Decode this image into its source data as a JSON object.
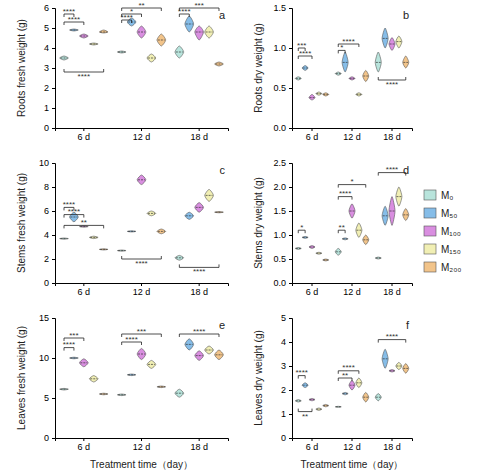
{
  "chart_data": [
    {
      "type": "violin",
      "title": "a",
      "y_label": "Roots fresh weight (g)",
      "categories": [
        "6 d",
        "12 d",
        "18 d"
      ],
      "ylim": [
        0,
        6
      ],
      "yticks": [
        0,
        1,
        2,
        3,
        4,
        5,
        6
      ],
      "legend": "right",
      "series": [
        {
          "name": "M₀",
          "color": "#b8e4dc",
          "values": [
            3.5,
            3.8,
            3.8
          ],
          "min": [
            3.4,
            3.75,
            3.5
          ],
          "max": [
            3.6,
            3.85,
            4.1
          ]
        },
        {
          "name": "M₅₀",
          "color": "#86bde8",
          "values": [
            4.9,
            5.3,
            5.2
          ],
          "min": [
            4.85,
            5.1,
            4.8
          ],
          "max": [
            4.95,
            5.5,
            5.6
          ]
        },
        {
          "name": "M₁₀₀",
          "color": "#d98ee0",
          "values": [
            4.6,
            4.8,
            4.8
          ],
          "min": [
            4.5,
            4.5,
            4.4
          ],
          "max": [
            4.7,
            5.1,
            5.1
          ]
        },
        {
          "name": "M₁₅₀",
          "color": "#f1efb4",
          "values": [
            4.2,
            3.5,
            4.8
          ],
          "min": [
            4.15,
            3.3,
            4.5
          ],
          "max": [
            4.25,
            3.7,
            5.1
          ]
        },
        {
          "name": "M₂₀₀",
          "color": "#f2c48a",
          "values": [
            4.8,
            4.4,
            3.2
          ],
          "min": [
            4.75,
            4.1,
            3.1
          ],
          "max": [
            4.9,
            4.7,
            3.3
          ]
        }
      ],
      "annotations": [
        {
          "text": "****",
          "category": 0,
          "from": 0,
          "to": 1,
          "y": 5.7
        },
        {
          "text": "****",
          "category": 0,
          "from": 0,
          "to": 2,
          "y": 5.3
        },
        {
          "text": "****",
          "category": 0,
          "from": 0,
          "to": 4,
          "y": 2.8
        },
        {
          "text": "**",
          "category": 1,
          "from": 0,
          "to": 4,
          "y": 6.0
        },
        {
          "text": "*",
          "category": 1,
          "from": 0,
          "to": 2,
          "y": 5.7
        },
        {
          "text": "****",
          "category": 1,
          "from": 0,
          "to": 1,
          "y": 5.4
        },
        {
          "text": "***",
          "category": 2,
          "from": 0,
          "to": 4,
          "y": 6.0
        },
        {
          "text": "****",
          "category": 2,
          "from": 0,
          "to": 1,
          "y": 5.7
        }
      ]
    },
    {
      "type": "violin",
      "title": "b",
      "y_label": "Roots dry weight (g)",
      "categories": [
        "6 d",
        "12 d",
        "18 d"
      ],
      "ylim": [
        0,
        1.5
      ],
      "yticks": [
        {
          "value": 0,
          "label": "0.0"
        },
        {
          "value": 0.5,
          "label": "0.5"
        },
        {
          "value": 1,
          "label": "1.0"
        },
        {
          "value": 1.5,
          "label": "1.5"
        }
      ],
      "series": [
        {
          "color": "#b8e4dc",
          "values": [
            0.62,
            0.68,
            0.82
          ],
          "min": [
            0.6,
            0.66,
            0.7
          ],
          "max": [
            0.64,
            0.7,
            0.95
          ]
        },
        {
          "color": "#86bde8",
          "values": [
            0.75,
            0.82,
            1.12
          ],
          "min": [
            0.72,
            0.7,
            1.0
          ],
          "max": [
            0.78,
            0.95,
            1.25
          ]
        },
        {
          "color": "#d98ee0",
          "values": [
            0.38,
            0.62,
            1.05
          ],
          "min": [
            0.35,
            0.6,
            0.97
          ],
          "max": [
            0.42,
            0.64,
            1.13
          ]
        },
        {
          "color": "#f1efb4",
          "values": [
            0.43,
            0.42,
            1.08
          ],
          "min": [
            0.41,
            0.4,
            1.0
          ],
          "max": [
            0.45,
            0.44,
            1.15
          ]
        },
        {
          "color": "#f2c48a",
          "values": [
            0.42,
            0.65,
            0.82
          ],
          "min": [
            0.4,
            0.58,
            0.75
          ],
          "max": [
            0.44,
            0.72,
            0.9
          ]
        }
      ],
      "annotations": [
        {
          "text": "***",
          "category": 0,
          "from": 0,
          "to": 1,
          "y": 1.0
        },
        {
          "text": "****",
          "category": 0,
          "from": 0,
          "to": 2,
          "y": 0.9
        },
        {
          "text": "****",
          "category": 1,
          "from": 0,
          "to": 3,
          "y": 1.05
        },
        {
          "text": "*",
          "category": 1,
          "from": 0,
          "to": 1,
          "y": 0.97
        },
        {
          "text": "****",
          "category": 2,
          "from": 0,
          "to": 4,
          "y": 0.6
        }
      ]
    },
    {
      "type": "violin",
      "title": "c",
      "y_label": "Stems fresh weight (g)",
      "categories": [
        "6 d",
        "12 d",
        "18 d"
      ],
      "ylim": [
        0,
        10
      ],
      "yticks": [
        0,
        2,
        4,
        6,
        8,
        10
      ],
      "series": [
        {
          "color": "#b8e4dc",
          "values": [
            3.7,
            2.7,
            2.1
          ],
          "min": [
            3.65,
            2.65,
            1.9
          ],
          "max": [
            3.75,
            2.75,
            2.3
          ]
        },
        {
          "color": "#86bde8",
          "values": [
            5.5,
            4.3,
            5.6
          ],
          "min": [
            5.1,
            4.25,
            5.3
          ],
          "max": [
            5.9,
            4.35,
            5.9
          ]
        },
        {
          "color": "#d98ee0",
          "values": [
            4.7,
            8.6,
            6.3
          ],
          "min": [
            4.65,
            8.2,
            5.9
          ],
          "max": [
            4.75,
            9.0,
            6.7
          ]
        },
        {
          "color": "#f1efb4",
          "values": [
            3.8,
            5.8,
            7.3
          ],
          "min": [
            3.7,
            5.6,
            6.8
          ],
          "max": [
            3.9,
            6.0,
            7.8
          ]
        },
        {
          "color": "#f2c48a",
          "values": [
            2.8,
            4.3,
            5.9
          ],
          "min": [
            2.75,
            4.1,
            5.85
          ],
          "max": [
            2.85,
            4.5,
            5.95
          ]
        }
      ],
      "annotations": [
        {
          "text": "****",
          "category": 0,
          "from": 0,
          "to": 1,
          "y": 6.3
        },
        {
          "text": "****",
          "category": 0,
          "from": 0,
          "to": 2,
          "y": 5.7
        },
        {
          "text": "**",
          "category": 0,
          "from": 0,
          "to": 4,
          "y": 4.8
        },
        {
          "text": "****",
          "category": 1,
          "from": 0,
          "to": 4,
          "y": 2.0
        },
        {
          "text": "****",
          "category": 2,
          "from": 0,
          "to": 4,
          "y": 1.3
        }
      ]
    },
    {
      "type": "violin",
      "title": "d",
      "y_label": "Stems dry weight (g)",
      "categories": [
        "6 d",
        "12 d",
        "18 d"
      ],
      "ylim": [
        0,
        2.5
      ],
      "yticks": [
        {
          "value": 0,
          "label": "0.0"
        },
        {
          "value": 0.5,
          "label": "0.5"
        },
        {
          "value": 1,
          "label": "1.0"
        },
        {
          "value": 1.5,
          "label": "1.5"
        },
        {
          "value": 2,
          "label": "2.0"
        },
        {
          "value": 2.5,
          "label": "2.5"
        }
      ],
      "series": [
        {
          "color": "#b8e4dc",
          "values": [
            0.72,
            0.65,
            0.52
          ],
          "min": [
            0.7,
            0.58,
            0.5
          ],
          "max": [
            0.74,
            0.72,
            0.54
          ]
        },
        {
          "color": "#86bde8",
          "values": [
            0.95,
            0.92,
            1.4
          ],
          "min": [
            0.93,
            0.9,
            1.2
          ],
          "max": [
            0.97,
            0.94,
            1.6
          ]
        },
        {
          "color": "#d98ee0",
          "values": [
            0.75,
            1.5,
            1.5
          ],
          "min": [
            0.72,
            1.35,
            1.2
          ],
          "max": [
            0.78,
            1.65,
            1.8
          ]
        },
        {
          "color": "#f1efb4",
          "values": [
            0.62,
            1.1,
            1.8
          ],
          "min": [
            0.6,
            0.95,
            1.6
          ],
          "max": [
            0.64,
            1.25,
            2.0
          ]
        },
        {
          "color": "#f2c48a",
          "values": [
            0.48,
            0.9,
            1.42
          ],
          "min": [
            0.46,
            0.8,
            1.3
          ],
          "max": [
            0.5,
            1.0,
            1.55
          ]
        }
      ],
      "annotations": [
        {
          "text": "*",
          "category": 0,
          "from": 0,
          "to": 1,
          "y": 1.1
        },
        {
          "text": "*",
          "category": 1,
          "from": 0,
          "to": 4,
          "y": 2.05
        },
        {
          "text": "****",
          "category": 1,
          "from": 0,
          "to": 2,
          "y": 1.8
        },
        {
          "text": "**",
          "category": 1,
          "from": 0,
          "to": 1,
          "y": 1.1
        },
        {
          "text": "****",
          "category": 2,
          "from": 0,
          "to": 4,
          "y": 2.3
        }
      ]
    },
    {
      "type": "violin",
      "title": "e",
      "y_label": "Leaves fresh weight (g)",
      "x_label": "Treatment time（day）",
      "categories": [
        "6 d",
        "12 d",
        "18 d"
      ],
      "ylim": [
        0,
        15
      ],
      "yticks": [
        0,
        5,
        10,
        15
      ],
      "series": [
        {
          "color": "#b8e4dc",
          "values": [
            6.1,
            5.4,
            5.6
          ],
          "min": [
            6.0,
            5.3,
            5.1
          ],
          "max": [
            6.2,
            5.5,
            6.1
          ]
        },
        {
          "color": "#86bde8",
          "values": [
            10.0,
            7.9,
            11.7
          ],
          "min": [
            9.9,
            7.8,
            11.0
          ],
          "max": [
            10.1,
            8.0,
            12.4
          ]
        },
        {
          "color": "#d98ee0",
          "values": [
            9.4,
            10.5,
            10.3
          ],
          "min": [
            8.9,
            9.8,
            9.7
          ],
          "max": [
            9.9,
            11.2,
            10.9
          ]
        },
        {
          "color": "#f1efb4",
          "values": [
            7.4,
            9.2,
            11.0
          ],
          "min": [
            7.0,
            8.7,
            10.5
          ],
          "max": [
            7.8,
            9.7,
            11.5
          ]
        },
        {
          "color": "#f2c48a",
          "values": [
            5.5,
            6.4,
            10.4
          ],
          "min": [
            5.4,
            6.3,
            9.8
          ],
          "max": [
            5.6,
            6.5,
            11.0
          ]
        }
      ],
      "annotations": [
        {
          "text": "***",
          "category": 0,
          "from": 0,
          "to": 2,
          "y": 12.5
        },
        {
          "text": "****",
          "category": 0,
          "from": 0,
          "to": 1,
          "y": 11.3
        },
        {
          "text": "***",
          "category": 1,
          "from": 0,
          "to": 4,
          "y": 13.0
        },
        {
          "text": "****",
          "category": 1,
          "from": 0,
          "to": 2,
          "y": 12.0
        },
        {
          "text": "****",
          "category": 2,
          "from": 0,
          "to": 4,
          "y": 13.0
        }
      ]
    },
    {
      "type": "violin",
      "title": "f",
      "y_label": "Leaves dry weight (g)",
      "x_label": "Treatment time（day）",
      "categories": [
        "6 d",
        "12 d",
        "18 d"
      ],
      "ylim": [
        0,
        5
      ],
      "yticks": [
        0,
        1,
        2,
        3,
        4,
        5
      ],
      "series": [
        {
          "color": "#b8e4dc",
          "values": [
            1.55,
            1.3,
            1.7
          ],
          "min": [
            1.5,
            1.28,
            1.55
          ],
          "max": [
            1.6,
            1.32,
            1.85
          ]
        },
        {
          "color": "#86bde8",
          "values": [
            2.2,
            1.85,
            3.3
          ],
          "min": [
            2.1,
            1.8,
            2.9
          ],
          "max": [
            2.3,
            1.9,
            3.7
          ]
        },
        {
          "color": "#d98ee0",
          "values": [
            1.6,
            2.2,
            2.8
          ],
          "min": [
            1.55,
            2.0,
            2.75
          ],
          "max": [
            1.65,
            2.4,
            2.85
          ]
        },
        {
          "color": "#f1efb4",
          "values": [
            1.2,
            2.3,
            3.0
          ],
          "min": [
            1.15,
            2.1,
            2.85
          ],
          "max": [
            1.25,
            2.5,
            3.15
          ]
        },
        {
          "color": "#f2c48a",
          "values": [
            1.35,
            1.7,
            2.9
          ],
          "min": [
            1.3,
            1.5,
            2.7
          ],
          "max": [
            1.4,
            1.9,
            3.1
          ]
        }
      ],
      "annotations": [
        {
          "text": "****",
          "category": 0,
          "from": 0,
          "to": 1,
          "y": 2.6
        },
        {
          "text": "**",
          "category": 0,
          "from": 0,
          "to": 2,
          "y": 1.1
        },
        {
          "text": "****",
          "category": 1,
          "from": 0,
          "to": 3,
          "y": 2.8
        },
        {
          "text": "**",
          "category": 1,
          "from": 0,
          "to": 2,
          "y": 2.5
        },
        {
          "text": "****",
          "category": 2,
          "from": 0,
          "to": 4,
          "y": 4.1
        }
      ]
    }
  ]
}
